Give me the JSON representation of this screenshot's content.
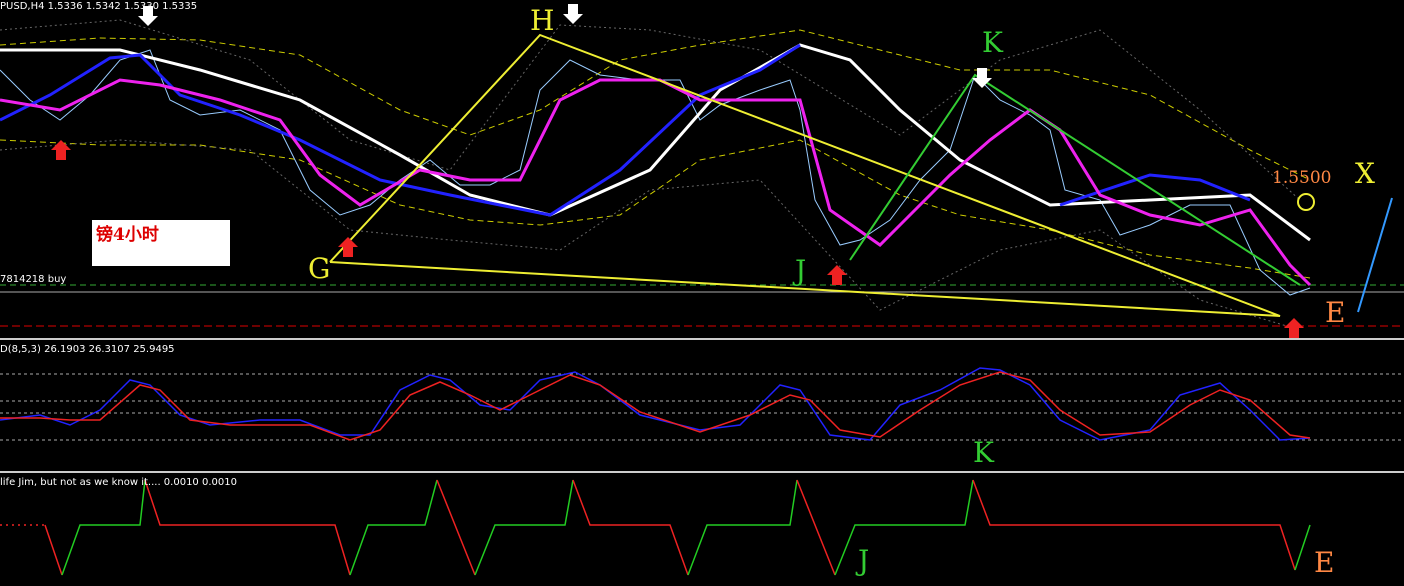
{
  "header": {
    "symbol_line": "PUSD,H4  1.5336 1.5342 1.5330 1.5335"
  },
  "main_pane": {
    "labels": {
      "H": "H",
      "K": "K",
      "G": "G",
      "J": "J",
      "E": "E",
      "X": "X"
    },
    "price_label": "1.5500",
    "note": "镑4小时",
    "order_label": "7814218 buy"
  },
  "stoch_pane": {
    "header": "D(8,5,3) 26.1903 26.3107 25.9495",
    "label": "K"
  },
  "lower_pane": {
    "header": "life Jim, but not as we know it....  0.0010 0.0010",
    "labels": {
      "J": "J",
      "E": "E"
    }
  }
}
